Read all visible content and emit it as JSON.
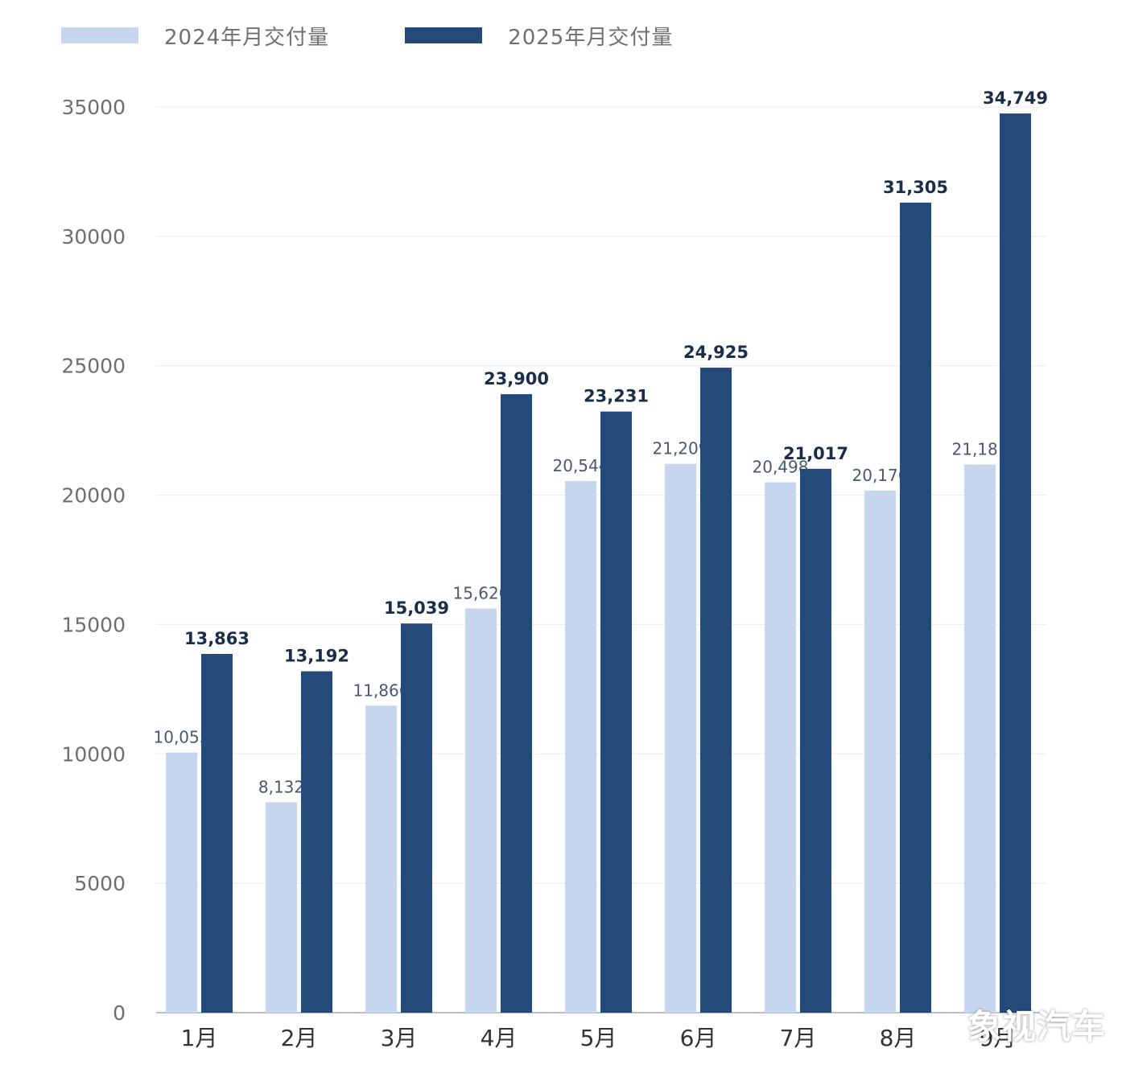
{
  "chart_data": {
    "type": "bar",
    "categories": [
      "1月",
      "2月",
      "3月",
      "4月",
      "5月",
      "6月",
      "7月",
      "8月",
      "9月"
    ],
    "series": [
      {
        "name": "2024年月交付量",
        "color": "#c5d6ee",
        "values": [
          10055,
          8132,
          11866,
          15620,
          20544,
          21209,
          20498,
          20176,
          21181
        ],
        "labels": [
          "10,055",
          "8,132",
          "11,866",
          "15,620",
          "20,544",
          "21,209",
          "20,498",
          "20,176",
          "21,181"
        ]
      },
      {
        "name": "2025年月交付量",
        "color": "#234a78",
        "values": [
          13863,
          13192,
          15039,
          23900,
          23231,
          24925,
          21017,
          31305,
          34749
        ],
        "labels": [
          "13,863",
          "13,192",
          "15,039",
          "23,900",
          "23,231",
          "24,925",
          "21,017",
          "31,305",
          "34,749"
        ]
      }
    ],
    "yticks": [
      "0",
      "5000",
      "10000",
      "15000",
      "20000",
      "25000",
      "30000",
      "35000"
    ],
    "ylim": [
      0,
      35000
    ],
    "grid": true,
    "legend_position": "top-left"
  },
  "watermark": "象视汽车"
}
